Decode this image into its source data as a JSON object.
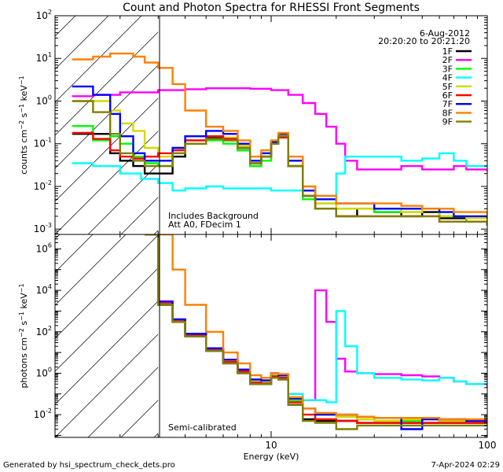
{
  "chart_data": [
    {
      "type": "line",
      "title": "Count and Photon Spectra for RHESSI Front Segments",
      "panel": "top",
      "xlabel": "",
      "ylabel": "counts cm^-2 s^-1 keV^-1",
      "xscale": "log",
      "yscale": "log",
      "xlim": [
        1.0,
        100.0
      ],
      "ylim": [
        0.00075,
        100.0
      ],
      "yticks": [
        {
          "value": 0.001,
          "exp": "-3"
        },
        {
          "value": 0.01,
          "exp": "-2"
        },
        {
          "value": 0.1,
          "exp": "-1"
        },
        {
          "value": 1,
          "exp": "0"
        },
        {
          "value": 10,
          "exp": "1"
        },
        {
          "value": 100,
          "exp": "2"
        }
      ],
      "annotations": [
        "6-Aug-2012",
        "20:20:20 to 20:21:20",
        "Includes Background",
        "Att A0, FDecim 1"
      ],
      "legend_position": "top-right",
      "series": [
        {
          "name": "1F",
          "color": "#000000",
          "x": [
            1.2,
            1.5,
            1.8,
            2.0,
            2.3,
            2.6,
            3.0,
            3.5,
            4,
            5,
            6,
            7,
            8,
            9,
            10,
            10.8,
            12,
            14,
            16,
            20,
            25,
            30,
            40,
            50,
            60,
            70,
            80,
            100
          ],
          "y": [
            0.17,
            0.17,
            0.06,
            0.04,
            0.03,
            0.02,
            0.02,
            0.05,
            0.1,
            0.14,
            0.12,
            0.07,
            0.03,
            0.05,
            0.1,
            0.15,
            0.03,
            0.008,
            0.003,
            0.002,
            0.003,
            0.0025,
            0.002,
            0.0025,
            0.0018,
            0.0018,
            0.0015,
            0.0012
          ]
        },
        {
          "name": "2F",
          "color": "#ff00ff",
          "x": [
            1.2,
            1.5,
            2.0,
            3.0,
            4,
            5,
            6,
            8,
            10,
            12,
            14,
            16,
            18,
            20,
            22,
            25,
            30,
            40,
            50,
            60,
            70,
            80,
            100
          ],
          "y": [
            1.3,
            1.4,
            1.6,
            1.8,
            1.9,
            2.0,
            2.0,
            1.95,
            1.8,
            1.4,
            0.9,
            0.5,
            0.25,
            0.1,
            0.04,
            0.025,
            0.025,
            0.03,
            0.025,
            0.025,
            0.03,
            0.025,
            0.022
          ]
        },
        {
          "name": "3F",
          "color": "#00ff00",
          "x": [
            1.2,
            1.5,
            1.8,
            2.0,
            2.3,
            2.6,
            3.0,
            3.5,
            4,
            5,
            6,
            7,
            8,
            9,
            10,
            10.8,
            12,
            14,
            16,
            20,
            25,
            30,
            40,
            50,
            60,
            70,
            80,
            100
          ],
          "y": [
            0.26,
            0.12,
            0.15,
            0.1,
            0.05,
            0.035,
            0.03,
            0.06,
            0.1,
            0.12,
            0.1,
            0.07,
            0.03,
            0.04,
            0.1,
            0.15,
            0.03,
            0.005,
            0.004,
            0.003,
            0.003,
            0.0025,
            0.0025,
            0.003,
            0.002,
            0.002,
            0.0015,
            0.0015
          ]
        },
        {
          "name": "4F",
          "color": "#00ffff",
          "x": [
            1.2,
            1.5,
            2.0,
            2.5,
            3.0,
            3.5,
            4,
            5,
            6,
            8,
            10,
            12,
            14,
            16,
            18,
            20,
            22,
            25,
            30,
            40,
            50,
            60,
            70,
            80,
            100
          ],
          "y": [
            0.035,
            0.03,
            0.02,
            0.015,
            0.012,
            0.008,
            0.009,
            0.01,
            0.009,
            0.009,
            0.008,
            0.008,
            0.006,
            0.006,
            0.006,
            0.02,
            0.05,
            0.05,
            0.05,
            0.04,
            0.045,
            0.06,
            0.04,
            0.03,
            0.03
          ]
        },
        {
          "name": "5F",
          "color": "#d7d700",
          "x": [
            1.2,
            1.5,
            1.8,
            2.0,
            2.3,
            2.6,
            3.0,
            3.5,
            4,
            5,
            6,
            7,
            8,
            9,
            10,
            10.8,
            12,
            14,
            16,
            20,
            25,
            30,
            40,
            50,
            60,
            70,
            80,
            100
          ],
          "y": [
            1.0,
            1.0,
            0.6,
            0.3,
            0.2,
            0.08,
            0.05,
            0.08,
            0.12,
            0.15,
            0.14,
            0.09,
            0.04,
            0.06,
            0.11,
            0.16,
            0.04,
            0.01,
            0.004,
            0.003,
            0.003,
            0.003,
            0.0025,
            0.003,
            0.002,
            0.002,
            0.0018,
            0.0015
          ]
        },
        {
          "name": "6F",
          "color": "#ff0000",
          "x": [
            1.2,
            1.5,
            1.8,
            2.0,
            2.3,
            2.6,
            3.0,
            3.5,
            4,
            5,
            6,
            7,
            8,
            9,
            10,
            10.8,
            12,
            14,
            16,
            20,
            25,
            30,
            40,
            50,
            60,
            70,
            80,
            100
          ],
          "y": [
            0.18,
            0.13,
            0.07,
            0.05,
            0.045,
            0.05,
            0.06,
            0.07,
            0.12,
            0.15,
            0.13,
            0.08,
            0.035,
            0.05,
            0.1,
            0.14,
            0.03,
            0.006,
            0.003,
            0.002,
            0.002,
            0.002,
            0.002,
            0.002,
            0.0015,
            0.0015,
            0.0015,
            0.0012
          ]
        },
        {
          "name": "7F",
          "color": "#0000ff",
          "x": [
            1.2,
            1.5,
            1.8,
            2.0,
            2.3,
            2.6,
            3.0,
            3.5,
            4,
            5,
            6,
            7,
            8,
            9,
            10,
            10.8,
            12,
            14,
            16,
            20,
            25,
            30,
            40,
            50,
            60,
            70,
            80,
            100
          ],
          "y": [
            2.2,
            1.4,
            0.5,
            0.15,
            0.06,
            0.04,
            0.04,
            0.08,
            0.15,
            0.2,
            0.17,
            0.1,
            0.04,
            0.06,
            0.11,
            0.17,
            0.04,
            0.008,
            0.005,
            0.004,
            0.004,
            0.003,
            0.003,
            0.003,
            0.0025,
            0.002,
            0.002,
            0.0018
          ]
        },
        {
          "name": "8F",
          "color": "#ff8000",
          "x": [
            1.2,
            1.5,
            1.8,
            2.0,
            2.3,
            2.6,
            3.0,
            3.5,
            4,
            5,
            6,
            7,
            8,
            9,
            10,
            10.8,
            12,
            14,
            16,
            20,
            25,
            30,
            40,
            50,
            60,
            70,
            80,
            100
          ],
          "y": [
            9.5,
            11,
            13,
            13,
            11,
            8,
            6,
            2.5,
            0.6,
            0.25,
            0.2,
            0.12,
            0.05,
            0.07,
            0.12,
            0.18,
            0.05,
            0.01,
            0.006,
            0.004,
            0.004,
            0.004,
            0.0035,
            0.003,
            0.003,
            0.0025,
            0.0025,
            0.002
          ]
        },
        {
          "name": "9F",
          "color": "#808000",
          "x": [
            1.2,
            1.5,
            1.8,
            2.0,
            2.3,
            2.6,
            3.0,
            3.5,
            4,
            5,
            6,
            7,
            8,
            9,
            10,
            10.8,
            12,
            14,
            16,
            20,
            25,
            30,
            40,
            50,
            60,
            70,
            80,
            100
          ],
          "y": [
            1.0,
            0.55,
            0.17,
            0.06,
            0.04,
            0.03,
            0.03,
            0.06,
            0.1,
            0.13,
            0.12,
            0.08,
            0.035,
            0.05,
            0.1,
            0.15,
            0.03,
            0.006,
            0.003,
            0.002,
            0.002,
            0.002,
            0.002,
            0.002,
            0.0015,
            0.0015,
            0.0015,
            0.0012
          ]
        }
      ]
    },
    {
      "type": "line",
      "panel": "bottom",
      "xlabel": "Energy (keV)",
      "ylabel": "photons cm^-2 s^-1 keV^-1",
      "xscale": "log",
      "yscale": "log",
      "xlim": [
        1.0,
        100.0
      ],
      "ylim": [
        0.0008,
        5000000.0
      ],
      "yticks": [
        {
          "value": 0.01,
          "exp": "-2"
        },
        {
          "value": 1,
          "exp": "0"
        },
        {
          "value": 100,
          "exp": "2"
        },
        {
          "value": 10000,
          "exp": "4"
        },
        {
          "value": 1000000,
          "exp": "6"
        }
      ],
      "xticks": [
        {
          "value": 10,
          "label": "10"
        },
        {
          "value": 100,
          "label": "100"
        }
      ],
      "annotations": [
        "Semi-calibrated"
      ],
      "series": [
        {
          "name": "1F",
          "color": "#000000",
          "x": [
            2.6,
            3.0,
            3.5,
            4,
            5,
            6,
            7,
            8,
            9,
            10,
            10.8,
            12,
            14,
            16,
            20,
            25,
            30,
            40,
            50,
            60,
            70,
            80,
            100
          ],
          "y": [
            5000000,
            2000,
            300,
            60,
            12,
            3,
            1,
            0.3,
            0.3,
            0.6,
            0.5,
            0.03,
            0.006,
            0.005,
            0.005,
            0.004,
            0.004,
            0.004,
            0.004,
            0.004,
            0.004,
            0.004,
            0.004
          ]
        },
        {
          "name": "2F",
          "color": "#ff00ff",
          "x": [
            2.6,
            3.0,
            3.5,
            4,
            5,
            6,
            7,
            8,
            9,
            10,
            10.8,
            12,
            14,
            16,
            18,
            20,
            22,
            25,
            30,
            40,
            50,
            60,
            70,
            80,
            100
          ],
          "y": [
            5000000,
            3000,
            400,
            80,
            15,
            4,
            1.5,
            0.5,
            0.4,
            0.8,
            0.7,
            0.1,
            0.05,
            10000,
            300,
            5,
            1.2,
            1,
            0.9,
            0.8,
            0.7,
            0.6,
            0.4,
            0.3,
            0.2
          ]
        },
        {
          "name": "3F",
          "color": "#00ff00",
          "x": [
            2.6,
            3.0,
            3.5,
            4,
            5,
            6,
            7,
            8,
            9,
            10,
            10.8,
            12,
            14,
            16,
            20,
            25,
            30,
            40,
            50,
            60,
            70,
            80,
            100
          ],
          "y": [
            5000000,
            2500,
            350,
            70,
            14,
            4,
            1.3,
            0.4,
            0.35,
            0.8,
            0.7,
            0.05,
            0.02,
            0.01,
            0.008,
            0.006,
            0.005,
            0.005,
            0.006,
            0.004,
            0.005,
            0.004,
            0.005
          ]
        },
        {
          "name": "4F",
          "color": "#00ffff",
          "x": [
            2.6,
            3.0,
            3.5,
            4,
            5,
            6,
            7,
            8,
            9,
            10,
            10.8,
            12,
            14,
            16,
            18,
            20,
            22,
            25,
            30,
            40,
            50,
            60,
            70,
            80,
            100
          ],
          "y": [
            5000000,
            2500,
            350,
            70,
            14,
            4,
            1.3,
            0.4,
            0.35,
            0.8,
            0.7,
            0.1,
            0.05,
            0.05,
            0.04,
            1000,
            20,
            1,
            0.6,
            0.5,
            0.45,
            0.6,
            0.4,
            0.3,
            0.3
          ]
        },
        {
          "name": "5F",
          "color": "#d7d700",
          "x": [
            2.6,
            3.0,
            3.5,
            4,
            5,
            6,
            7,
            8,
            9,
            10,
            10.8,
            12,
            14,
            16,
            20,
            25,
            30,
            40,
            50,
            60,
            70,
            80,
            100
          ],
          "y": [
            5000000,
            2500,
            350,
            70,
            14,
            4,
            1.3,
            0.45,
            0.4,
            0.9,
            0.8,
            0.06,
            0.02,
            0.01,
            0.008,
            0.006,
            0.005,
            0.006,
            0.006,
            0.005,
            0.005,
            0.005,
            0.005
          ]
        },
        {
          "name": "6F",
          "color": "#ff0000",
          "x": [
            2.6,
            3.0,
            3.5,
            4,
            5,
            6,
            7,
            8,
            9,
            10,
            10.8,
            12,
            14,
            16,
            20,
            25,
            30,
            40,
            50,
            60,
            70,
            80,
            100
          ],
          "y": [
            5000000,
            2200,
            320,
            65,
            13,
            3.5,
            1.2,
            0.35,
            0.32,
            0.7,
            0.6,
            0.04,
            0.01,
            0.006,
            0.005,
            0.004,
            0.004,
            0.004,
            0.004,
            0.004,
            0.004,
            0.004,
            0.004
          ]
        },
        {
          "name": "7F",
          "color": "#0000ff",
          "x": [
            2.6,
            3.0,
            3.5,
            4,
            5,
            6,
            7,
            8,
            9,
            10,
            10.8,
            12,
            14,
            16,
            20,
            25,
            30,
            40,
            50,
            60,
            70,
            80,
            100
          ],
          "y": [
            5000000,
            2800,
            400,
            80,
            16,
            4.5,
            1.5,
            0.5,
            0.45,
            1,
            0.8,
            0.06,
            0.02,
            0.01,
            0.01,
            0.008,
            0.007,
            0.002,
            0.006,
            0.006,
            0.006,
            0.005,
            0.006
          ]
        },
        {
          "name": "8F",
          "color": "#ff8000",
          "x": [
            2.6,
            3.0,
            3.5,
            4,
            5,
            6,
            7,
            8,
            9,
            10,
            10.8,
            12,
            14,
            16,
            20,
            25,
            30,
            40,
            50,
            60,
            70,
            80,
            100
          ],
          "y": [
            5000000,
            5000000,
            100000,
            2000,
            100,
            10,
            3,
            0.8,
            0.6,
            1,
            0.9,
            0.07,
            0.02,
            0.012,
            0.01,
            0.008,
            0.007,
            0.007,
            0.007,
            0.006,
            0.006,
            0.006,
            0.006
          ]
        },
        {
          "name": "9F",
          "color": "#808000",
          "x": [
            2.6,
            3.0,
            3.5,
            4,
            5,
            6,
            7,
            8,
            9,
            10,
            10.8,
            12,
            14,
            16,
            20,
            25,
            30,
            40,
            50,
            60,
            70,
            80,
            100
          ],
          "y": [
            5000000,
            2000,
            300,
            60,
            12,
            3,
            1,
            0.3,
            0.3,
            0.6,
            0.5,
            0.03,
            0.005,
            0.004,
            0.002,
            0.003,
            0.003,
            0.003,
            0.003,
            0.003,
            0.003,
            0.003,
            0.003
          ]
        }
      ]
    }
  ],
  "footer": {
    "generated_by": "Generated by hsi_spectrum_check_dets.pro",
    "timestamp": "7-Apr-2024 02:29"
  }
}
